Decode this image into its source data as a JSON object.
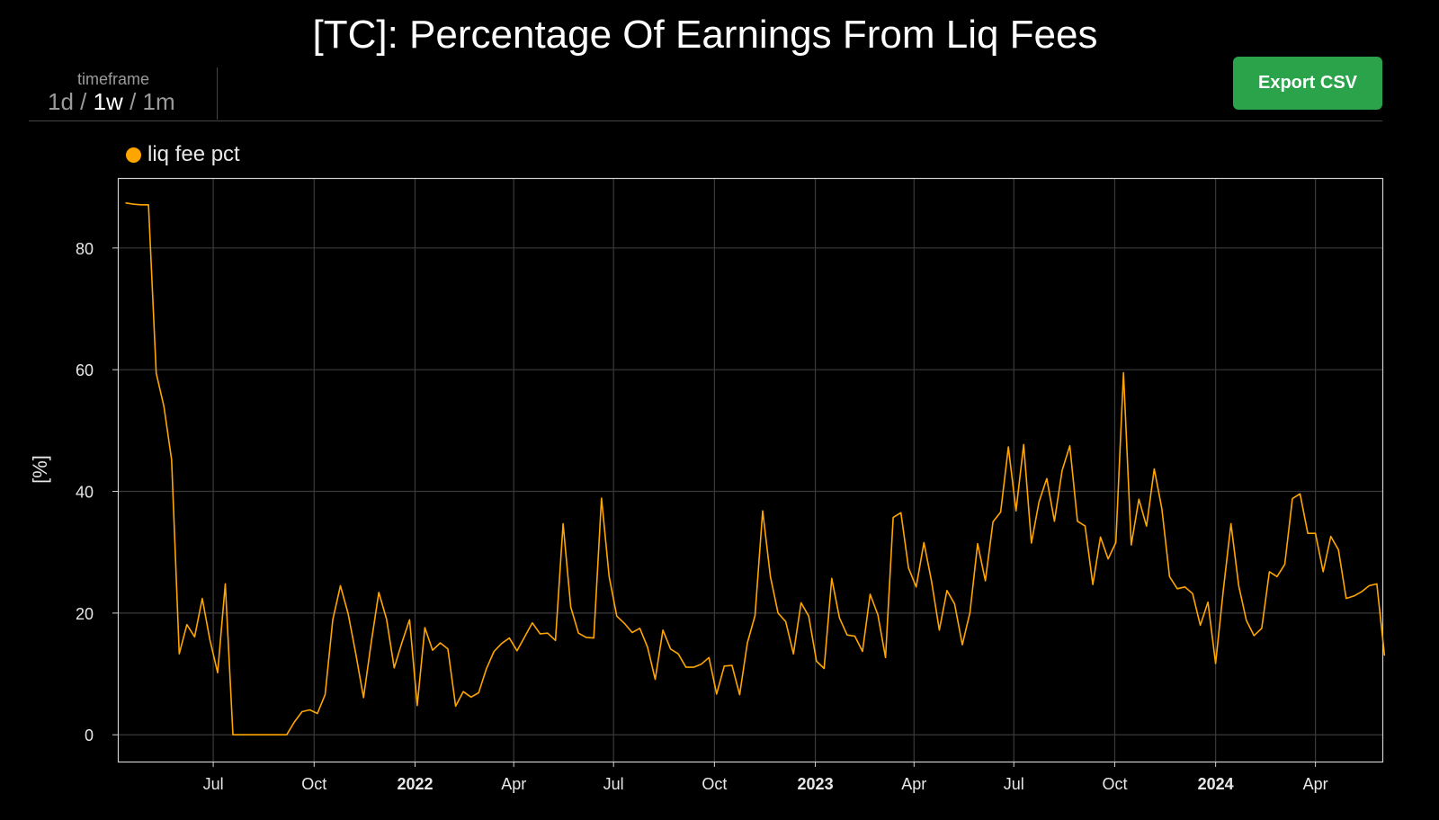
{
  "title": "[TC]: Percentage Of Earnings From Liq Fees",
  "timeframe": {
    "label": "timeframe",
    "options": [
      "1d",
      "1w",
      "1m"
    ],
    "selected": "1w"
  },
  "export_button": "Export CSV",
  "colors": {
    "series": "#ffa500",
    "export_button": "#2aa34a",
    "background": "#000000"
  },
  "chart_data": {
    "type": "line",
    "title": "[TC]: Percentage Of Earnings From Liq Fees",
    "xlabel": "",
    "ylabel": "[%]",
    "ylim": [
      -4.4,
      91.5
    ],
    "xlim": [
      "2021-04-05",
      "2024-06-01"
    ],
    "y_ticks": [
      0,
      20,
      40,
      60,
      80
    ],
    "x_ticks": [
      {
        "date": "2021-07-01",
        "label": "Jul",
        "bold": false
      },
      {
        "date": "2021-10-01",
        "label": "Oct",
        "bold": false
      },
      {
        "date": "2022-01-01",
        "label": "2022",
        "bold": true
      },
      {
        "date": "2022-04-01",
        "label": "Apr",
        "bold": false
      },
      {
        "date": "2022-07-01",
        "label": "Jul",
        "bold": false
      },
      {
        "date": "2022-10-01",
        "label": "Oct",
        "bold": false
      },
      {
        "date": "2023-01-01",
        "label": "2023",
        "bold": true
      },
      {
        "date": "2023-04-01",
        "label": "Apr",
        "bold": false
      },
      {
        "date": "2023-07-01",
        "label": "Jul",
        "bold": false
      },
      {
        "date": "2023-10-01",
        "label": "Oct",
        "bold": false
      },
      {
        "date": "2024-01-01",
        "label": "2024",
        "bold": true
      },
      {
        "date": "2024-04-01",
        "label": "Apr",
        "bold": false
      }
    ],
    "grid": true,
    "legend_position": "top-left",
    "x_start": "2021-04-12",
    "x_step_days": 7,
    "series": [
      {
        "name": "liq fee pct",
        "color": "#ffa500",
        "values": [
          87.4,
          87.2,
          87.1,
          87.1,
          59.4,
          54.0,
          45.2,
          13.3,
          18.1,
          16.1,
          22.4,
          15.6,
          10.2,
          24.8,
          0,
          0,
          0,
          0,
          0,
          0,
          0,
          0,
          2.1,
          3.8,
          4.1,
          3.5,
          6.6,
          18.9,
          24.5,
          19.9,
          13.3,
          6.1,
          15.1,
          23.4,
          19.0,
          11.0,
          15.1,
          18.9,
          4.8,
          17.6,
          13.9,
          15.1,
          14.1,
          4.7,
          7.1,
          6.2,
          6.9,
          10.8,
          13.7,
          15.0,
          15.9,
          13.8,
          16.1,
          18.4,
          16.6,
          16.7,
          15.5,
          34.7,
          21.0,
          16.7,
          16.0,
          15.9,
          38.9,
          26.0,
          19.5,
          18.3,
          16.8,
          17.5,
          14.4,
          9.1,
          17.2,
          14.1,
          13.3,
          11.1,
          11.1,
          11.6,
          12.7,
          6.7,
          11.3,
          11.4,
          6.6,
          15.1,
          19.6,
          36.8,
          26.0,
          20.0,
          18.6,
          13.3,
          21.7,
          19.5,
          12.1,
          10.9,
          25.7,
          19.2,
          16.4,
          16.2,
          13.7,
          23.1,
          19.7,
          12.7,
          35.7,
          36.5,
          27.4,
          24.3,
          31.6,
          25.2,
          17.2,
          23.7,
          21.5,
          14.8,
          20.1,
          31.4,
          25.3,
          35.0,
          36.6,
          47.3,
          36.8,
          47.7,
          31.5,
          38.3,
          42.1,
          35.1,
          43.4,
          47.5,
          35.1,
          34.3,
          24.7,
          32.5,
          28.9,
          31.6,
          59.5,
          31.2,
          38.7,
          34.3,
          43.7,
          37.1,
          26.0,
          24.0,
          24.3,
          23.2,
          18.0,
          21.8,
          11.7,
          23.8,
          34.7,
          24.5,
          18.8,
          16.3,
          17.5,
          26.8,
          26.0,
          28.0,
          38.8,
          39.6,
          33.1,
          33.1,
          26.8,
          32.6,
          30.4,
          22.4,
          22.8,
          23.5,
          24.5,
          24.8,
          13.0
        ]
      }
    ]
  }
}
